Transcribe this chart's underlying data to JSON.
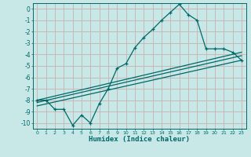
{
  "xlabel": "Humidex (Indice chaleur)",
  "bg_color": "#c8e8e8",
  "grid_color": "#c8b8b8",
  "line_color": "#006868",
  "xlim": [
    -0.5,
    23.5
  ],
  "ylim": [
    -10.5,
    0.5
  ],
  "xticks": [
    0,
    1,
    2,
    3,
    4,
    5,
    6,
    7,
    8,
    9,
    10,
    11,
    12,
    13,
    14,
    15,
    16,
    17,
    18,
    19,
    20,
    21,
    22,
    23
  ],
  "yticks": [
    0,
    -1,
    -2,
    -3,
    -4,
    -5,
    -6,
    -7,
    -8,
    -9,
    -10
  ],
  "main_x": [
    0,
    1,
    2,
    3,
    4,
    5,
    6,
    7,
    8,
    9,
    10,
    11,
    12,
    13,
    14,
    15,
    16,
    17,
    18,
    19,
    20,
    21,
    22,
    23
  ],
  "main_y": [
    -8.0,
    -8.0,
    -8.8,
    -8.8,
    -10.2,
    -9.3,
    -10.0,
    -8.3,
    -7.0,
    -5.2,
    -4.8,
    -3.4,
    -2.5,
    -1.8,
    -1.0,
    -0.3,
    0.4,
    -0.5,
    -1.0,
    -3.5,
    -3.5,
    -3.5,
    -3.8,
    -4.5
  ],
  "line1_x": [
    0,
    23
  ],
  "line1_y": [
    -8.0,
    -3.8
  ],
  "line2_x": [
    0,
    23
  ],
  "line2_y": [
    -8.5,
    -4.5
  ],
  "line3_x": [
    0,
    23
  ],
  "line3_y": [
    -8.2,
    -4.1
  ]
}
